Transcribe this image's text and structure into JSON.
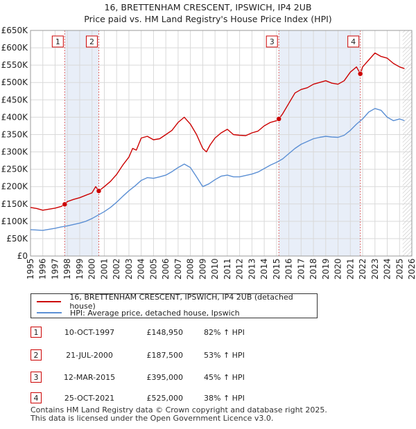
{
  "chart_data": {
    "type": "line",
    "title": "16, BRETTENHAM CRESCENT, IPSWICH, IP4 2UB",
    "subtitle": "Price paid vs. HM Land Registry's House Price Index (HPI)",
    "xlabel": "",
    "ylabel": "",
    "xlim": [
      1995,
      2026
    ],
    "ylim": [
      0,
      650000
    ],
    "y_ticks": [
      {
        "value": 0,
        "label": "£0"
      },
      {
        "value": 50000,
        "label": "£50K"
      },
      {
        "value": 100000,
        "label": "£100K"
      },
      {
        "value": 150000,
        "label": "£150K"
      },
      {
        "value": 200000,
        "label": "£200K"
      },
      {
        "value": 250000,
        "label": "£250K"
      },
      {
        "value": 300000,
        "label": "£300K"
      },
      {
        "value": 350000,
        "label": "£350K"
      },
      {
        "value": 400000,
        "label": "£400K"
      },
      {
        "value": 450000,
        "label": "£450K"
      },
      {
        "value": 500000,
        "label": "£500K"
      },
      {
        "value": 550000,
        "label": "£550K"
      },
      {
        "value": 600000,
        "label": "£600K"
      },
      {
        "value": 650000,
        "label": "£650K"
      }
    ],
    "x_ticks": [
      "1995",
      "1996",
      "1997",
      "1998",
      "1999",
      "2000",
      "2001",
      "2002",
      "2003",
      "2004",
      "2005",
      "2006",
      "2007",
      "2008",
      "2009",
      "2010",
      "2011",
      "2012",
      "2013",
      "2014",
      "2015",
      "2016",
      "2017",
      "2018",
      "2019",
      "2020",
      "2021",
      "2022",
      "2023",
      "2024",
      "2025",
      "2026"
    ],
    "grid": true,
    "series": [
      {
        "name": "16, BRETTENHAM CRESCENT, IPSWICH, IP4 2UB (detached house)",
        "color": "#cc0000",
        "x": [
          1995.0,
          1995.5,
          1996.0,
          1996.5,
          1997.0,
          1997.5,
          1997.78,
          1998.0,
          1998.5,
          1999.0,
          1999.5,
          2000.0,
          2000.3,
          2000.55,
          2001.0,
          2001.5,
          2002.0,
          2002.5,
          2003.0,
          2003.3,
          2003.6,
          2004.0,
          2004.5,
          2005.0,
          2005.5,
          2006.0,
          2006.5,
          2007.0,
          2007.5,
          2008.0,
          2008.5,
          2009.0,
          2009.3,
          2009.6,
          2010.0,
          2010.5,
          2011.0,
          2011.5,
          2012.0,
          2012.5,
          2013.0,
          2013.5,
          2014.0,
          2014.5,
          2015.0,
          2015.19,
          2015.5,
          2016.0,
          2016.5,
          2017.0,
          2017.5,
          2018.0,
          2018.5,
          2019.0,
          2019.5,
          2020.0,
          2020.5,
          2021.0,
          2021.5,
          2021.81,
          2022.0,
          2022.5,
          2023.0,
          2023.5,
          2024.0,
          2024.5,
          2025.0,
          2025.4
        ],
        "values": [
          140000,
          137000,
          132000,
          135000,
          138000,
          143000,
          148950,
          157000,
          163000,
          168000,
          175000,
          182000,
          200000,
          187500,
          200000,
          215000,
          235000,
          262000,
          285000,
          310000,
          305000,
          340000,
          345000,
          335000,
          338000,
          350000,
          362000,
          385000,
          400000,
          380000,
          350000,
          310000,
          300000,
          320000,
          340000,
          355000,
          365000,
          350000,
          348000,
          347000,
          355000,
          360000,
          375000,
          385000,
          390000,
          395000,
          410000,
          440000,
          470000,
          480000,
          485000,
          495000,
          500000,
          505000,
          498000,
          495000,
          505000,
          530000,
          545000,
          525000,
          545000,
          565000,
          585000,
          575000,
          570000,
          555000,
          545000,
          540000
        ]
      },
      {
        "name": "HPI: Average price, detached house, Ipswich",
        "color": "#5b8fd4",
        "x": [
          1995.0,
          1995.5,
          1996.0,
          1996.5,
          1997.0,
          1997.5,
          1998.0,
          1998.5,
          1999.0,
          1999.5,
          2000.0,
          2000.5,
          2001.0,
          2001.5,
          2002.0,
          2002.5,
          2003.0,
          2003.5,
          2004.0,
          2004.5,
          2005.0,
          2005.5,
          2006.0,
          2006.5,
          2007.0,
          2007.5,
          2008.0,
          2008.5,
          2009.0,
          2009.5,
          2010.0,
          2010.5,
          2011.0,
          2011.5,
          2012.0,
          2012.5,
          2013.0,
          2013.5,
          2014.0,
          2014.5,
          2015.0,
          2015.5,
          2016.0,
          2016.5,
          2017.0,
          2017.5,
          2018.0,
          2018.5,
          2019.0,
          2019.5,
          2020.0,
          2020.5,
          2021.0,
          2021.5,
          2022.0,
          2022.5,
          2023.0,
          2023.5,
          2024.0,
          2024.5,
          2025.0,
          2025.4
        ],
        "values": [
          76000,
          75000,
          74000,
          77000,
          80000,
          84000,
          87000,
          91000,
          95000,
          100000,
          108000,
          118000,
          128000,
          140000,
          155000,
          172000,
          188000,
          202000,
          218000,
          226000,
          224000,
          228000,
          233000,
          243000,
          255000,
          265000,
          255000,
          228000,
          200000,
          208000,
          220000,
          230000,
          233000,
          228000,
          228000,
          232000,
          236000,
          242000,
          252000,
          262000,
          270000,
          280000,
          295000,
          310000,
          322000,
          330000,
          338000,
          342000,
          345000,
          343000,
          342000,
          348000,
          362000,
          380000,
          395000,
          415000,
          425000,
          420000,
          400000,
          390000,
          395000,
          390000
        ]
      }
    ],
    "markers": [
      {
        "label": "1",
        "x": 1997.78,
        "y": 148950
      },
      {
        "label": "2",
        "x": 2000.55,
        "y": 187500
      },
      {
        "label": "3",
        "x": 2015.19,
        "y": 395000
      },
      {
        "label": "4",
        "x": 2021.81,
        "y": 525000
      }
    ],
    "shaded_ranges": [
      [
        1997.78,
        2000.55
      ],
      [
        2015.19,
        2021.81
      ]
    ],
    "hatched_from": 2025.25
  },
  "legend": {
    "property_label": "16, BRETTENHAM CRESCENT, IPSWICH, IP4 2UB (detached house)",
    "hpi_label": "HPI: Average price, detached house, Ipswich"
  },
  "sales": [
    {
      "num": "1",
      "date": "10-OCT-1997",
      "price": "£148,950",
      "hpi": "82% ↑ HPI"
    },
    {
      "num": "2",
      "date": "21-JUL-2000",
      "price": "£187,500",
      "hpi": "53% ↑ HPI"
    },
    {
      "num": "3",
      "date": "12-MAR-2015",
      "price": "£395,000",
      "hpi": "45% ↑ HPI"
    },
    {
      "num": "4",
      "date": "25-OCT-2021",
      "price": "£525,000",
      "hpi": "38% ↑ HPI"
    }
  ],
  "footer": {
    "line1": "Contains HM Land Registry data © Crown copyright and database right 2025.",
    "line2": "This data is licensed under the Open Government Licence v3.0."
  },
  "colors": {
    "property": "#cc0000",
    "hpi": "#5b8fd4",
    "shade": "#e8eef8",
    "grid": "#d9d9d9"
  }
}
